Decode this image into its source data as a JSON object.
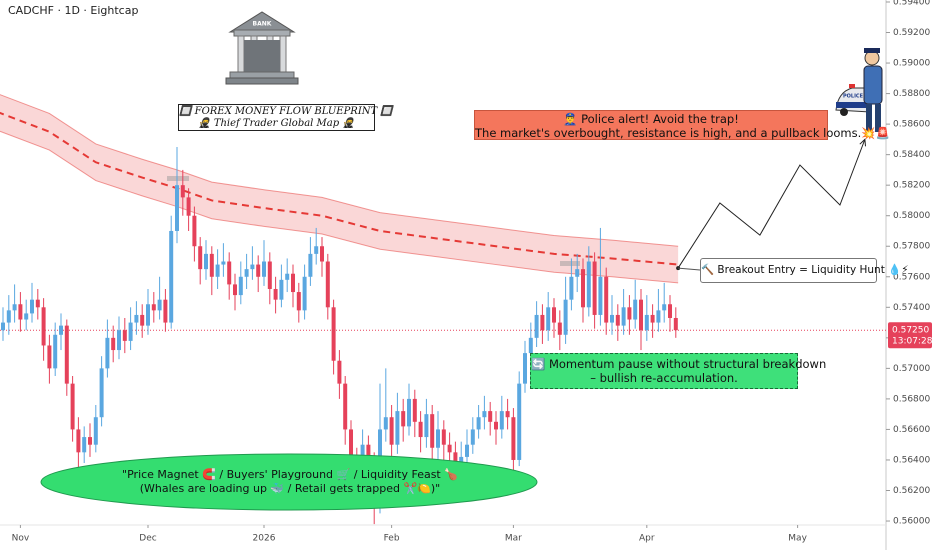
{
  "chart_data": {
    "type": "candlestick",
    "title": "CADCHF · 1D · Eightcap",
    "up_color": "#5aa7e0",
    "down_color": "#e5415a",
    "xlim": [
      -0.517,
      152.24
    ],
    "ylim": [
      0.55974,
      0.59413
    ],
    "xticks": [
      {
        "value": 3,
        "label": "Nov"
      },
      {
        "value": 25,
        "label": "Dec"
      },
      {
        "value": 45,
        "label": "2026"
      },
      {
        "value": 67,
        "label": "Feb"
      },
      {
        "value": 88,
        "label": "Mar"
      },
      {
        "value": 111,
        "label": "Apr"
      },
      {
        "value": 137,
        "label": "May"
      }
    ],
    "yticks": [
      {
        "value": 0.594,
        "label": "0.59400"
      },
      {
        "value": 0.592,
        "label": "0.59200"
      },
      {
        "value": 0.59,
        "label": "0.59000"
      },
      {
        "value": 0.588,
        "label": "0.58800"
      },
      {
        "value": 0.586,
        "label": "0.58600"
      },
      {
        "value": 0.584,
        "label": "0.58400"
      },
      {
        "value": 0.582,
        "label": "0.58200"
      },
      {
        "value": 0.58,
        "label": "0.58000"
      },
      {
        "value": 0.578,
        "label": "0.57800"
      },
      {
        "value": 0.576,
        "label": "0.57600"
      },
      {
        "value": 0.574,
        "label": "0.57400"
      },
      {
        "value": 0.572,
        "label": "0.57200"
      },
      {
        "value": 0.57,
        "label": "0.57000"
      },
      {
        "value": 0.568,
        "label": "0.56800"
      },
      {
        "value": 0.566,
        "label": "0.56600"
      },
      {
        "value": 0.564,
        "label": "0.56400"
      },
      {
        "value": 0.562,
        "label": "0.56200"
      },
      {
        "value": 0.56,
        "label": "0.56000"
      }
    ],
    "last_price": {
      "value": 0.5725,
      "label": "0.57250"
    },
    "countdown": "13:07:28",
    "candles": [
      [
        0.5725,
        0.574,
        0.5718,
        0.573
      ],
      [
        0.573,
        0.5748,
        0.5722,
        0.5738
      ],
      [
        0.5738,
        0.5755,
        0.573,
        0.5742
      ],
      [
        0.5742,
        0.575,
        0.5724,
        0.5732
      ],
      [
        0.5732,
        0.5745,
        0.5725,
        0.5736
      ],
      [
        0.5736,
        0.5756,
        0.573,
        0.5745
      ],
      [
        0.5745,
        0.5752,
        0.5732,
        0.574
      ],
      [
        0.574,
        0.5746,
        0.5705,
        0.5715
      ],
      [
        0.5715,
        0.5722,
        0.569,
        0.57
      ],
      [
        0.57,
        0.573,
        0.5695,
        0.5722
      ],
      [
        0.5722,
        0.5736,
        0.5712,
        0.5728
      ],
      [
        0.5728,
        0.5732,
        0.5682,
        0.569
      ],
      [
        0.569,
        0.5695,
        0.5652,
        0.566
      ],
      [
        0.566,
        0.5668,
        0.5632,
        0.5645
      ],
      [
        0.5645,
        0.5662,
        0.5638,
        0.5655
      ],
      [
        0.5655,
        0.5664,
        0.5642,
        0.565
      ],
      [
        0.565,
        0.5676,
        0.5645,
        0.5668
      ],
      [
        0.5668,
        0.5708,
        0.5662,
        0.57
      ],
      [
        0.57,
        0.5732,
        0.5694,
        0.572
      ],
      [
        0.572,
        0.5728,
        0.5704,
        0.5712
      ],
      [
        0.5712,
        0.5734,
        0.5706,
        0.5725
      ],
      [
        0.5725,
        0.5733,
        0.571,
        0.5718
      ],
      [
        0.5718,
        0.574,
        0.5712,
        0.573
      ],
      [
        0.573,
        0.5744,
        0.5722,
        0.5735
      ],
      [
        0.5735,
        0.5742,
        0.572,
        0.5728
      ],
      [
        0.5728,
        0.5752,
        0.5722,
        0.5742
      ],
      [
        0.5742,
        0.575,
        0.573,
        0.5738
      ],
      [
        0.5738,
        0.576,
        0.5732,
        0.5745
      ],
      [
        0.5745,
        0.5752,
        0.5724,
        0.573
      ],
      [
        0.573,
        0.58,
        0.5726,
        0.579
      ],
      [
        0.579,
        0.5845,
        0.5782,
        0.582
      ],
      [
        0.582,
        0.583,
        0.58,
        0.5812
      ],
      [
        0.5812,
        0.5818,
        0.579,
        0.58
      ],
      [
        0.58,
        0.5806,
        0.577,
        0.578
      ],
      [
        0.578,
        0.5786,
        0.5755,
        0.5765
      ],
      [
        0.5765,
        0.5784,
        0.5758,
        0.5775
      ],
      [
        0.5775,
        0.578,
        0.5748,
        0.576
      ],
      [
        0.576,
        0.5778,
        0.5752,
        0.5768
      ],
      [
        0.5768,
        0.5782,
        0.576,
        0.577
      ],
      [
        0.577,
        0.5776,
        0.5745,
        0.5755
      ],
      [
        0.5755,
        0.5762,
        0.5738,
        0.5748
      ],
      [
        0.5748,
        0.577,
        0.5742,
        0.576
      ],
      [
        0.576,
        0.5775,
        0.5752,
        0.5765
      ],
      [
        0.5765,
        0.578,
        0.5758,
        0.5768
      ],
      [
        0.5768,
        0.5774,
        0.575,
        0.576
      ],
      [
        0.576,
        0.5784,
        0.5754,
        0.577
      ],
      [
        0.577,
        0.5776,
        0.5742,
        0.5752
      ],
      [
        0.5752,
        0.576,
        0.5736,
        0.5745
      ],
      [
        0.5745,
        0.5768,
        0.574,
        0.5758
      ],
      [
        0.5758,
        0.5772,
        0.575,
        0.5762
      ],
      [
        0.5762,
        0.5768,
        0.574,
        0.575
      ],
      [
        0.575,
        0.5756,
        0.573,
        0.5738
      ],
      [
        0.5738,
        0.5768,
        0.5732,
        0.576
      ],
      [
        0.576,
        0.5786,
        0.5754,
        0.5775
      ],
      [
        0.5775,
        0.5792,
        0.5768,
        0.578
      ],
      [
        0.578,
        0.5786,
        0.576,
        0.577
      ],
      [
        0.577,
        0.5775,
        0.5732,
        0.574
      ],
      [
        0.574,
        0.5745,
        0.5696,
        0.5705
      ],
      [
        0.5705,
        0.5712,
        0.568,
        0.569
      ],
      [
        0.569,
        0.5695,
        0.565,
        0.566
      ],
      [
        0.566,
        0.5666,
        0.563,
        0.564
      ],
      [
        0.564,
        0.5648,
        0.561,
        0.562
      ],
      [
        0.562,
        0.566,
        0.5614,
        0.565
      ],
      [
        0.565,
        0.5656,
        0.5628,
        0.564
      ],
      [
        0.564,
        0.5645,
        0.5598,
        0.561
      ],
      [
        0.561,
        0.569,
        0.5605,
        0.566
      ],
      [
        0.566,
        0.57,
        0.5652,
        0.5668
      ],
      [
        0.5668,
        0.5676,
        0.564,
        0.565
      ],
      [
        0.565,
        0.5684,
        0.5644,
        0.5672
      ],
      [
        0.5672,
        0.568,
        0.5652,
        0.5662
      ],
      [
        0.5662,
        0.569,
        0.5656,
        0.568
      ],
      [
        0.568,
        0.5686,
        0.5655,
        0.5665
      ],
      [
        0.5665,
        0.5672,
        0.5645,
        0.5655
      ],
      [
        0.5655,
        0.568,
        0.5648,
        0.567
      ],
      [
        0.567,
        0.5676,
        0.5638,
        0.5648
      ],
      [
        0.5648,
        0.5672,
        0.564,
        0.566
      ],
      [
        0.566,
        0.5666,
        0.564,
        0.565
      ],
      [
        0.565,
        0.5658,
        0.5635,
        0.5645
      ],
      [
        0.5645,
        0.5652,
        0.5625,
        0.5635
      ],
      [
        0.5635,
        0.5652,
        0.5628,
        0.5642
      ],
      [
        0.5642,
        0.566,
        0.5636,
        0.565
      ],
      [
        0.565,
        0.5668,
        0.5644,
        0.566
      ],
      [
        0.566,
        0.5676,
        0.5654,
        0.5668
      ],
      [
        0.5668,
        0.5682,
        0.566,
        0.5672
      ],
      [
        0.5672,
        0.5678,
        0.5656,
        0.5665
      ],
      [
        0.5665,
        0.5672,
        0.565,
        0.566
      ],
      [
        0.566,
        0.5682,
        0.5654,
        0.5672
      ],
      [
        0.5672,
        0.568,
        0.566,
        0.5668
      ],
      [
        0.5668,
        0.5674,
        0.562,
        0.564
      ],
      [
        0.564,
        0.5698,
        0.5636,
        0.569
      ],
      [
        0.569,
        0.5718,
        0.5684,
        0.571
      ],
      [
        0.571,
        0.573,
        0.5704,
        0.572
      ],
      [
        0.572,
        0.5744,
        0.5714,
        0.5735
      ],
      [
        0.5735,
        0.5742,
        0.5716,
        0.5725
      ],
      [
        0.5725,
        0.575,
        0.5718,
        0.574
      ],
      [
        0.574,
        0.5746,
        0.572,
        0.573
      ],
      [
        0.573,
        0.5738,
        0.5712,
        0.5722
      ],
      [
        0.5722,
        0.576,
        0.5716,
        0.5745
      ],
      [
        0.5745,
        0.5772,
        0.5738,
        0.576
      ],
      [
        0.576,
        0.5775,
        0.575,
        0.5765
      ],
      [
        0.5765,
        0.5772,
        0.573,
        0.574
      ],
      [
        0.574,
        0.578,
        0.5734,
        0.577
      ],
      [
        0.577,
        0.5776,
        0.5726,
        0.5735
      ],
      [
        0.5735,
        0.5792,
        0.5728,
        0.576
      ],
      [
        0.576,
        0.5766,
        0.5722,
        0.573
      ],
      [
        0.573,
        0.5748,
        0.5722,
        0.5735
      ],
      [
        0.5735,
        0.5742,
        0.5718,
        0.5728
      ],
      [
        0.5728,
        0.5752,
        0.5722,
        0.574
      ],
      [
        0.574,
        0.5748,
        0.5722,
        0.5732
      ],
      [
        0.5732,
        0.5758,
        0.5726,
        0.5745
      ],
      [
        0.5745,
        0.5752,
        0.5712,
        0.5725
      ],
      [
        0.5725,
        0.5748,
        0.5718,
        0.5735
      ],
      [
        0.5735,
        0.5742,
        0.572,
        0.573
      ],
      [
        0.573,
        0.5752,
        0.5724,
        0.5738
      ],
      [
        0.5738,
        0.5756,
        0.573,
        0.5742
      ],
      [
        0.5742,
        0.5748,
        0.5724,
        0.5733
      ],
      [
        0.5733,
        0.574,
        0.572,
        0.5725
      ]
    ],
    "band": {
      "color": "#e53935",
      "x": [
        -1,
        8,
        16,
        24,
        30,
        36,
        45,
        55,
        65,
        75,
        85,
        95,
        105,
        116.4
      ],
      "center": [
        0.5868,
        0.5855,
        0.5835,
        0.5825,
        0.5818,
        0.581,
        0.5805,
        0.58,
        0.579,
        0.5785,
        0.578,
        0.5775,
        0.5772,
        0.5768
      ],
      "upper": [
        0.588,
        0.5867,
        0.5847,
        0.5837,
        0.583,
        0.5822,
        0.5817,
        0.5812,
        0.5802,
        0.5797,
        0.5792,
        0.5787,
        0.5784,
        0.578
      ],
      "lower": [
        0.5856,
        0.5843,
        0.5823,
        0.5813,
        0.5806,
        0.5798,
        0.5793,
        0.5788,
        0.5778,
        0.5773,
        0.5768,
        0.5763,
        0.576,
        0.5756
      ]
    },
    "projection": {
      "x": [
        116.4,
        123.6,
        130.5,
        137.4,
        144.3,
        148.6
      ],
      "y": [
        0.57657,
        0.58083,
        0.57873,
        0.58332,
        0.5807,
        0.585
      ]
    }
  },
  "annotations": {
    "blueprint": [
      "🔲 FOREX MONEY FLOW BLUEPRINT 🔲",
      "🥷 Thief Trader Global Map 🥷"
    ],
    "police_alert": [
      "👮‍♂️ Police alert!  Avoid the trap!",
      "The market's overbought, resistance is high, and a pullback looms.💥🚨"
    ],
    "breakout": "🔨 Breakout Entry = Liquidity Hunt 💧⚡",
    "momentum": [
      "🔄 Momentum pause without structural breakdown",
      "– bullish re-accumulation."
    ],
    "magnet": [
      "\"Price Magnet 🧲 / Buyers' Playground 🛒 / Liquidity Feast 🍗",
      "(Whales are loading up 🐳 / Retail gets trapped ✂️🍋)\""
    ],
    "bank_sign": "BANK",
    "police_sign": "POLICE"
  }
}
